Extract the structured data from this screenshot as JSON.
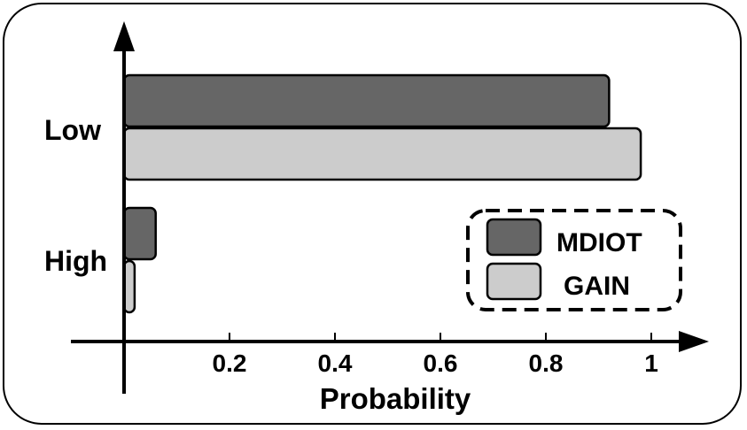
{
  "chart_data": {
    "type": "bar",
    "orientation": "horizontal",
    "categories": [
      "Low",
      "High"
    ],
    "series": [
      {
        "name": "MDIOT",
        "values": [
          0.92,
          0.06
        ],
        "color": "#666666"
      },
      {
        "name": "GAIN",
        "values": [
          0.98,
          0.02
        ],
        "color": "#cccccc"
      }
    ],
    "xlabel": "Probability",
    "ylabel": "",
    "xlim": [
      0,
      1.05
    ],
    "xticks": [
      {
        "value": 0.2,
        "label": "0.2"
      },
      {
        "value": 0.4,
        "label": "0.4"
      },
      {
        "value": 0.6,
        "label": "0.6"
      },
      {
        "value": 0.8,
        "label": "0.8"
      },
      {
        "value": 1.0,
        "label": "1"
      }
    ],
    "grid": false,
    "legend": "inside right, dashed border"
  }
}
